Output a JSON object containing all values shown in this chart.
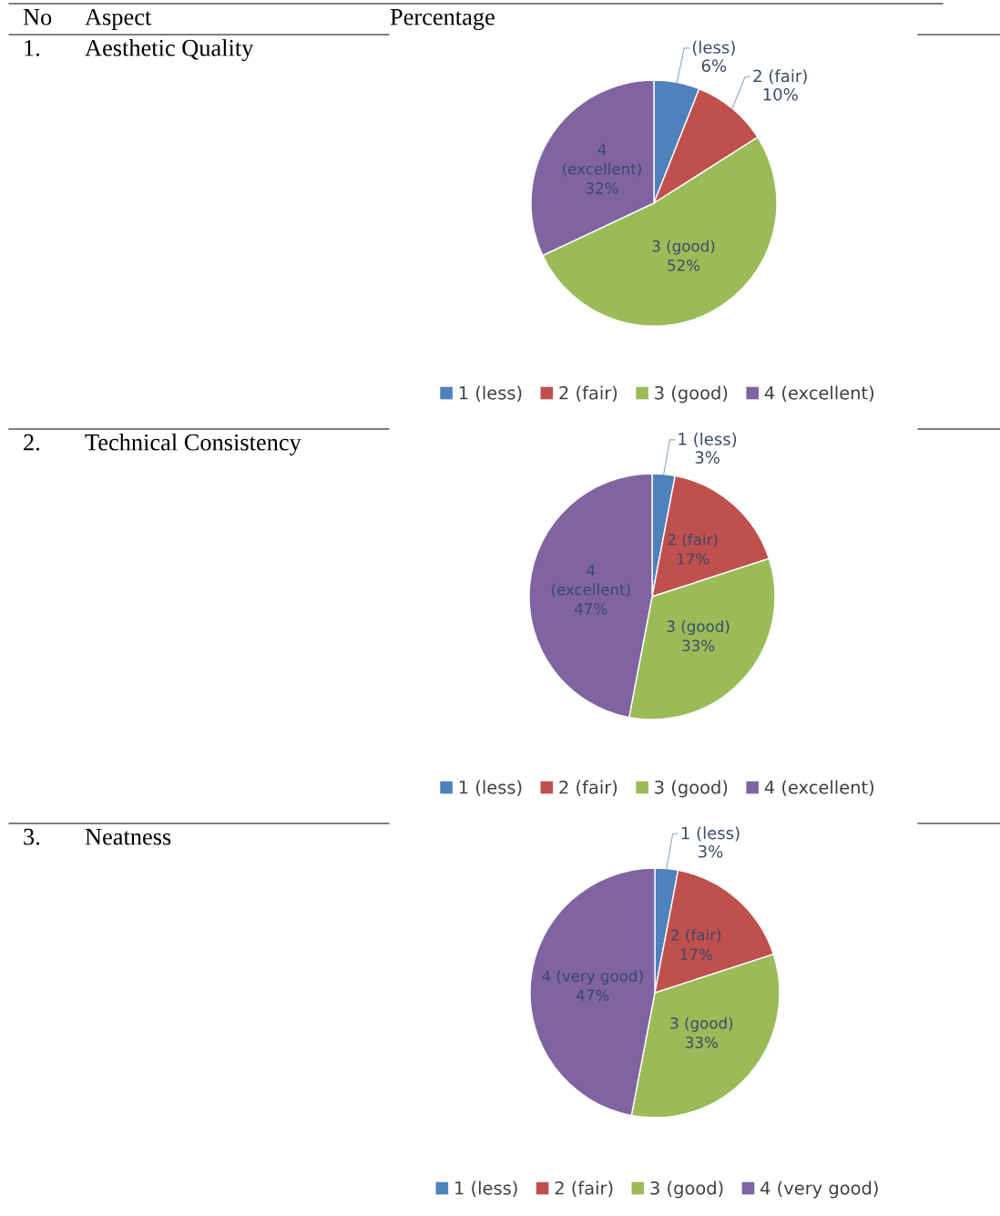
{
  "chart_data": [
    {
      "type": "pie",
      "title": "Aesthetic Quality",
      "annotations": [
        "No",
        "Aspect",
        "Percentage",
        "1."
      ],
      "categories": [
        "1 (less)",
        "2 (fair)",
        "3 (good)",
        "4 (excellent)"
      ],
      "values": [
        6,
        10,
        52,
        32
      ],
      "colors": [
        "#4f81bd",
        "#c0504d",
        "#9bbb59",
        "#8064a2"
      ],
      "value_labels": [
        "(less)\n6%",
        "2 (fair)\n10%",
        "3 (good)\n52%",
        "4\n(excellent)\n32%"
      ],
      "legend": "bottom"
    },
    {
      "type": "pie",
      "title": "Technical Consistency",
      "annotations": [
        "2."
      ],
      "categories": [
        "1 (less)",
        "2 (fair)",
        "3 (good)",
        "4 (excellent)"
      ],
      "values": [
        3,
        17,
        33,
        47
      ],
      "colors": [
        "#4f81bd",
        "#c0504d",
        "#9bbb59",
        "#8064a2"
      ],
      "value_labels": [
        "1 (less)\n3%",
        "2 (fair)\n17%",
        "3 (good)\n33%",
        "4\n(excellent)\n47%"
      ],
      "legend": "bottom"
    },
    {
      "type": "pie",
      "title": "Neatness",
      "annotations": [
        "3."
      ],
      "categories": [
        "1 (less)",
        "2 (fair)",
        "3 (good)",
        "4 (very good)"
      ],
      "values": [
        3,
        17,
        33,
        47
      ],
      "colors": [
        "#4f81bd",
        "#c0504d",
        "#9bbb59",
        "#8064a2"
      ],
      "value_labels": [
        "1 (less)\n3%",
        "2 (fair)\n17%",
        "3 (good)\n33%",
        "4 (very good)\n47%"
      ],
      "legend": "bottom"
    }
  ]
}
